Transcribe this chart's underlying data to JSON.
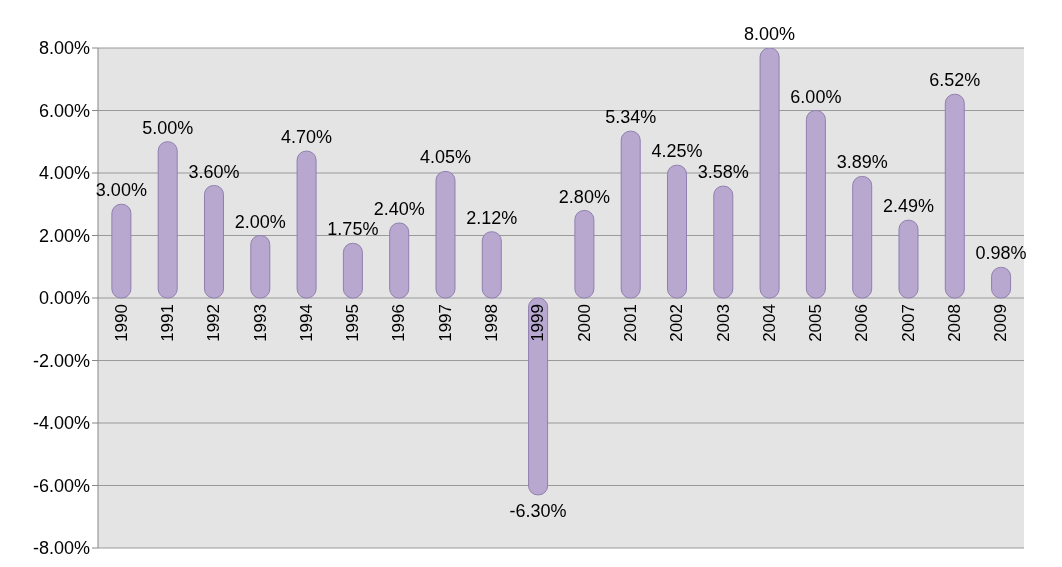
{
  "chart_data": {
    "type": "bar",
    "categories": [
      "1990",
      "1991",
      "1992",
      "1993",
      "1994",
      "1995",
      "1996",
      "1997",
      "1998",
      "1999",
      "2000",
      "2001",
      "2002",
      "2003",
      "2004",
      "2005",
      "2006",
      "2007",
      "2008",
      "2009"
    ],
    "values": [
      3.0,
      5.0,
      3.6,
      2.0,
      4.7,
      1.75,
      2.4,
      4.05,
      2.12,
      -6.3,
      2.8,
      5.34,
      4.25,
      3.58,
      8.0,
      6.0,
      3.89,
      2.49,
      6.52,
      0.98
    ],
    "value_labels": [
      "3.00%",
      "5.00%",
      "3.60%",
      "2.00%",
      "4.70%",
      "1.75%",
      "2.40%",
      "4.05%",
      "2.12%",
      "-6.30%",
      "2.80%",
      "5.34%",
      "4.25%",
      "3.58%",
      "8.00%",
      "6.00%",
      "3.89%",
      "2.49%",
      "6.52%",
      "0.98%"
    ],
    "color": "#b8a8d0",
    "ylim": [
      -8,
      8
    ],
    "yticks": [
      {
        "value": -8,
        "label": "-8.00%"
      },
      {
        "value": -6,
        "label": "-6.00%"
      },
      {
        "value": -4,
        "label": "-4.00%"
      },
      {
        "value": -2,
        "label": "-2.00%"
      },
      {
        "value": 0,
        "label": "0.00%"
      },
      {
        "value": 2,
        "label": "2.00%"
      },
      {
        "value": 4,
        "label": "4.00%"
      },
      {
        "value": 6,
        "label": "6.00%"
      },
      {
        "value": 8,
        "label": "8.00%"
      }
    ],
    "grid": "y",
    "legend": false
  }
}
